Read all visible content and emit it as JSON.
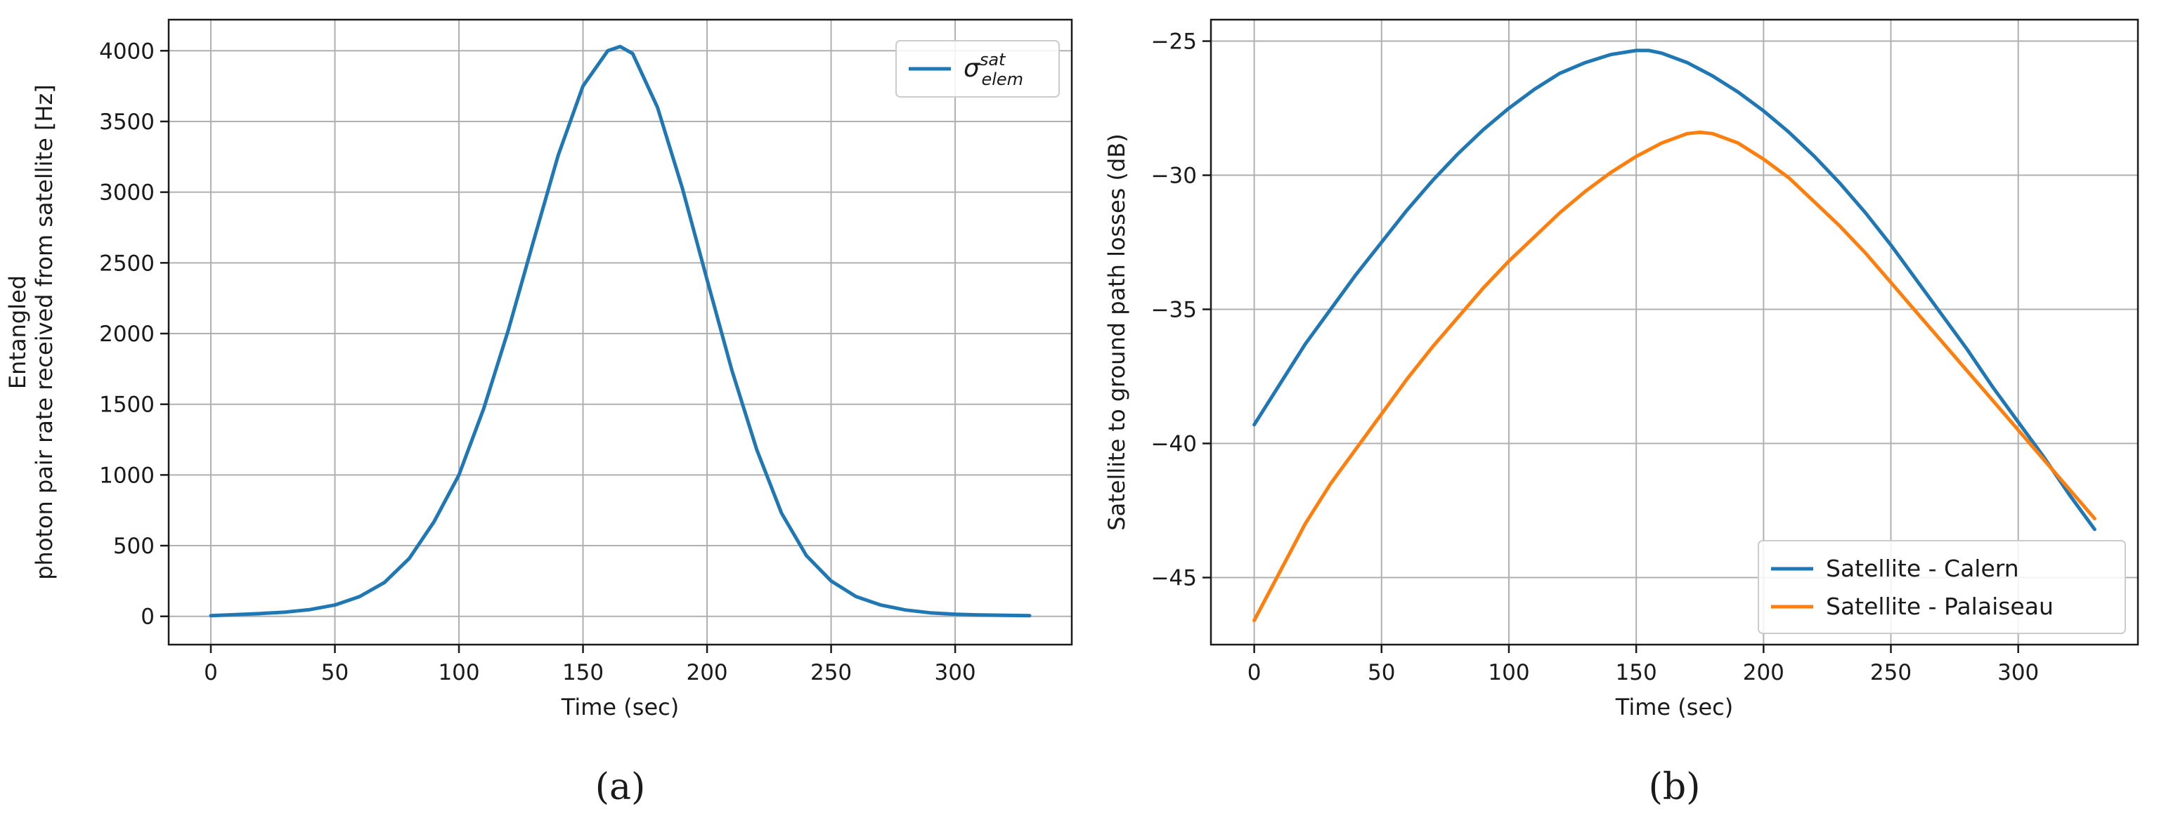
{
  "chart_data": [
    {
      "type": "line",
      "panel_label": "(a)",
      "xlabel": "Time (sec)",
      "ylabel": "Entangled\nphoton pair rate received from satellite [Hz]",
      "xlim": [
        -17,
        347
      ],
      "ylim": [
        -200,
        4220
      ],
      "xticks": [
        0,
        50,
        100,
        150,
        200,
        250,
        300
      ],
      "yticks": [
        0,
        500,
        1000,
        1500,
        2000,
        2500,
        3000,
        3500,
        4000
      ],
      "grid": true,
      "legend_position": "upper right",
      "series": [
        {
          "name": "σ_elem^sat",
          "color": "#1f77b4",
          "x": [
            0,
            10,
            20,
            30,
            40,
            50,
            60,
            70,
            80,
            90,
            100,
            110,
            120,
            130,
            140,
            150,
            160,
            165,
            170,
            180,
            190,
            200,
            210,
            220,
            230,
            240,
            250,
            260,
            270,
            280,
            290,
            300,
            310,
            320,
            330
          ],
          "y": [
            5,
            12,
            20,
            30,
            48,
            80,
            140,
            240,
            410,
            670,
            1000,
            1470,
            2030,
            2650,
            3260,
            3750,
            4000,
            4030,
            3980,
            3600,
            3030,
            2380,
            1740,
            1180,
            730,
            430,
            250,
            140,
            80,
            45,
            25,
            15,
            10,
            7,
            5
          ]
        }
      ]
    },
    {
      "type": "line",
      "panel_label": "(b)",
      "xlabel": "Time (sec)",
      "ylabel": "Satellite to ground path losses (dB)",
      "xlim": [
        -17,
        347
      ],
      "ylim": [
        -47.5,
        -24.2
      ],
      "xticks": [
        0,
        50,
        100,
        150,
        200,
        250,
        300
      ],
      "yticks": [
        -45,
        -40,
        -35,
        -30,
        -25
      ],
      "grid": true,
      "legend_position": "lower right",
      "series": [
        {
          "name": "Satellite - Calern",
          "color": "#1f77b4",
          "x": [
            0,
            10,
            20,
            30,
            40,
            50,
            60,
            70,
            80,
            90,
            100,
            110,
            120,
            130,
            140,
            150,
            155,
            160,
            170,
            180,
            190,
            200,
            210,
            220,
            230,
            240,
            250,
            260,
            270,
            280,
            290,
            300,
            310,
            320,
            330
          ],
          "y": [
            -39.3,
            -37.8,
            -36.3,
            -35.0,
            -33.7,
            -32.5,
            -31.3,
            -30.2,
            -29.2,
            -28.3,
            -27.5,
            -26.8,
            -26.2,
            -25.8,
            -25.5,
            -25.35,
            -25.35,
            -25.45,
            -25.8,
            -26.3,
            -26.9,
            -27.6,
            -28.4,
            -29.3,
            -30.3,
            -31.4,
            -32.6,
            -33.9,
            -35.2,
            -36.5,
            -37.9,
            -39.2,
            -40.5,
            -41.9,
            -43.2
          ]
        },
        {
          "name": "Satellite - Palaiseau",
          "color": "#ff7f0e",
          "x": [
            0,
            10,
            20,
            30,
            40,
            50,
            60,
            70,
            80,
            90,
            100,
            110,
            120,
            130,
            140,
            150,
            160,
            170,
            175,
            180,
            190,
            200,
            210,
            220,
            230,
            240,
            250,
            260,
            270,
            280,
            290,
            300,
            310,
            320,
            330
          ],
          "y": [
            -46.6,
            -44.8,
            -43.0,
            -41.5,
            -40.2,
            -38.9,
            -37.6,
            -36.4,
            -35.3,
            -34.2,
            -33.2,
            -32.3,
            -31.4,
            -30.6,
            -29.9,
            -29.3,
            -28.8,
            -28.45,
            -28.4,
            -28.45,
            -28.8,
            -29.4,
            -30.1,
            -31.0,
            -31.9,
            -32.9,
            -34.0,
            -35.1,
            -36.2,
            -37.3,
            -38.4,
            -39.5,
            -40.6,
            -41.7,
            -42.8
          ]
        }
      ]
    }
  ]
}
